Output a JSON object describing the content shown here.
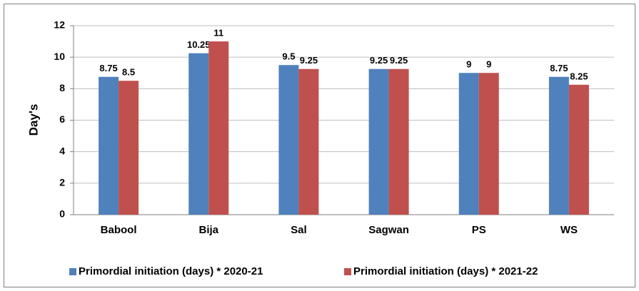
{
  "chart_data": {
    "type": "bar",
    "y_label": "Day's",
    "categories": [
      "Babool",
      "Bija",
      "Sal",
      "Sagwan",
      "PS",
      "WS"
    ],
    "series": [
      {
        "name": "Primordial initiation (days) * 2020-21",
        "color": "#4f81bd",
        "values": [
          8.75,
          10.25,
          9.5,
          9.25,
          9,
          8.75
        ]
      },
      {
        "name": "Primordial initiation (days) * 2021-22",
        "color": "#c0504d",
        "values": [
          8.5,
          11,
          9.25,
          9.25,
          9,
          8.25
        ]
      }
    ],
    "ylim": [
      0,
      12
    ],
    "yticks": [
      0,
      2,
      4,
      6,
      8,
      10,
      12
    ],
    "grid": true,
    "legend": "bottom"
  }
}
